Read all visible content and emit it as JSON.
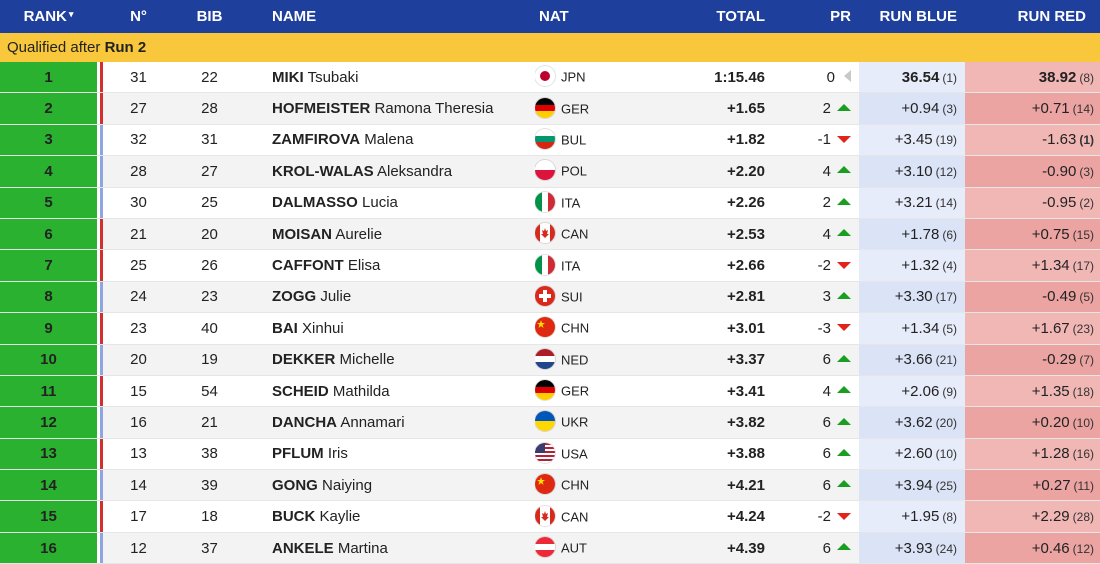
{
  "header": {
    "rank": "RANK",
    "rank_sort": "▾",
    "number": "N°",
    "bib": "BIB",
    "name": "NAME",
    "nat": "NAT",
    "total": "TOTAL",
    "pr": "PR",
    "run_blue": "RUN BLUE",
    "run_red": "RUN RED"
  },
  "banner": {
    "prefix": "Qualified after",
    "run": "Run 2"
  },
  "colors": {
    "header": "#1f3f9c",
    "banner": "#f8c73b",
    "rank": "#2ab12f",
    "red_course": "#d32f2f",
    "blue_course": "#8ea6e0"
  },
  "rows": [
    {
      "rank": "1",
      "course": "red",
      "no": "31",
      "bib": "22",
      "last": "MIKI",
      "first": "Tsubaki",
      "nat": "JPN",
      "total": "1:15.46",
      "pr": "0",
      "pr_dir": "same",
      "blue": "36.54",
      "blue_rank": "(1)",
      "blue_best": true,
      "red": "38.92",
      "red_rank": "(8)",
      "red_best": true
    },
    {
      "rank": "2",
      "course": "red",
      "no": "27",
      "bib": "28",
      "last": "HOFMEISTER",
      "first": "Ramona Theresia",
      "nat": "GER",
      "total": "+1.65",
      "pr": "2",
      "pr_dir": "up",
      "blue": "+0.94",
      "blue_rank": "(3)",
      "red": "+0.71",
      "red_rank": "(14)"
    },
    {
      "rank": "3",
      "course": "blue",
      "no": "32",
      "bib": "31",
      "last": "ZAMFIROVA",
      "first": "Malena",
      "nat": "BUL",
      "total": "+1.82",
      "pr": "-1",
      "pr_dir": "down",
      "blue": "+3.45",
      "blue_rank": "(19)",
      "red": "-1.63",
      "red_rank": "(1)",
      "red_rank_best": true
    },
    {
      "rank": "4",
      "course": "blue",
      "no": "28",
      "bib": "27",
      "last": "KROL-WALAS",
      "first": "Aleksandra",
      "nat": "POL",
      "total": "+2.20",
      "pr": "4",
      "pr_dir": "up",
      "blue": "+3.10",
      "blue_rank": "(12)",
      "red": "-0.90",
      "red_rank": "(3)"
    },
    {
      "rank": "5",
      "course": "blue",
      "no": "30",
      "bib": "25",
      "last": "DALMASSO",
      "first": "Lucia",
      "nat": "ITA",
      "total": "+2.26",
      "pr": "2",
      "pr_dir": "up",
      "blue": "+3.21",
      "blue_rank": "(14)",
      "red": "-0.95",
      "red_rank": "(2)"
    },
    {
      "rank": "6",
      "course": "red",
      "no": "21",
      "bib": "20",
      "last": "MOISAN",
      "first": "Aurelie",
      "nat": "CAN",
      "total": "+2.53",
      "pr": "4",
      "pr_dir": "up",
      "blue": "+1.78",
      "blue_rank": "(6)",
      "red": "+0.75",
      "red_rank": "(15)"
    },
    {
      "rank": "7",
      "course": "red",
      "no": "25",
      "bib": "26",
      "last": "CAFFONT",
      "first": "Elisa",
      "nat": "ITA",
      "total": "+2.66",
      "pr": "-2",
      "pr_dir": "down",
      "blue": "+1.32",
      "blue_rank": "(4)",
      "red": "+1.34",
      "red_rank": "(17)"
    },
    {
      "rank": "8",
      "course": "blue",
      "no": "24",
      "bib": "23",
      "last": "ZOGG",
      "first": "Julie",
      "nat": "SUI",
      "total": "+2.81",
      "pr": "3",
      "pr_dir": "up",
      "blue": "+3.30",
      "blue_rank": "(17)",
      "red": "-0.49",
      "red_rank": "(5)"
    },
    {
      "rank": "9",
      "course": "red",
      "no": "23",
      "bib": "40",
      "last": "BAI",
      "first": "Xinhui",
      "nat": "CHN",
      "total": "+3.01",
      "pr": "-3",
      "pr_dir": "down",
      "blue": "+1.34",
      "blue_rank": "(5)",
      "red": "+1.67",
      "red_rank": "(23)"
    },
    {
      "rank": "10",
      "course": "blue",
      "no": "20",
      "bib": "19",
      "last": "DEKKER",
      "first": "Michelle",
      "nat": "NED",
      "total": "+3.37",
      "pr": "6",
      "pr_dir": "up",
      "blue": "+3.66",
      "blue_rank": "(21)",
      "red": "-0.29",
      "red_rank": "(7)"
    },
    {
      "rank": "11",
      "course": "red",
      "no": "15",
      "bib": "54",
      "last": "SCHEID",
      "first": "Mathilda",
      "nat": "GER",
      "total": "+3.41",
      "pr": "4",
      "pr_dir": "up",
      "blue": "+2.06",
      "blue_rank": "(9)",
      "red": "+1.35",
      "red_rank": "(18)"
    },
    {
      "rank": "12",
      "course": "blue",
      "no": "16",
      "bib": "21",
      "last": "DANCHA",
      "first": "Annamari",
      "nat": "UKR",
      "total": "+3.82",
      "pr": "6",
      "pr_dir": "up",
      "blue": "+3.62",
      "blue_rank": "(20)",
      "red": "+0.20",
      "red_rank": "(10)"
    },
    {
      "rank": "13",
      "course": "red",
      "no": "13",
      "bib": "38",
      "last": "PFLUM",
      "first": "Iris",
      "nat": "USA",
      "total": "+3.88",
      "pr": "6",
      "pr_dir": "up",
      "blue": "+2.60",
      "blue_rank": "(10)",
      "red": "+1.28",
      "red_rank": "(16)"
    },
    {
      "rank": "14",
      "course": "blue",
      "no": "14",
      "bib": "39",
      "last": "GONG",
      "first": "Naiying",
      "nat": "CHN",
      "total": "+4.21",
      "pr": "6",
      "pr_dir": "up",
      "blue": "+3.94",
      "blue_rank": "(25)",
      "red": "+0.27",
      "red_rank": "(11)"
    },
    {
      "rank": "15",
      "course": "red",
      "no": "17",
      "bib": "18",
      "last": "BUCK",
      "first": "Kaylie",
      "nat": "CAN",
      "total": "+4.24",
      "pr": "-2",
      "pr_dir": "down",
      "blue": "+1.95",
      "blue_rank": "(8)",
      "red": "+2.29",
      "red_rank": "(28)"
    },
    {
      "rank": "16",
      "course": "blue",
      "no": "12",
      "bib": "37",
      "last": "ANKELE",
      "first": "Martina",
      "nat": "AUT",
      "total": "+4.39",
      "pr": "6",
      "pr_dir": "up",
      "blue": "+3.93",
      "blue_rank": "(24)",
      "red": "+0.46",
      "red_rank": "(12)"
    }
  ]
}
